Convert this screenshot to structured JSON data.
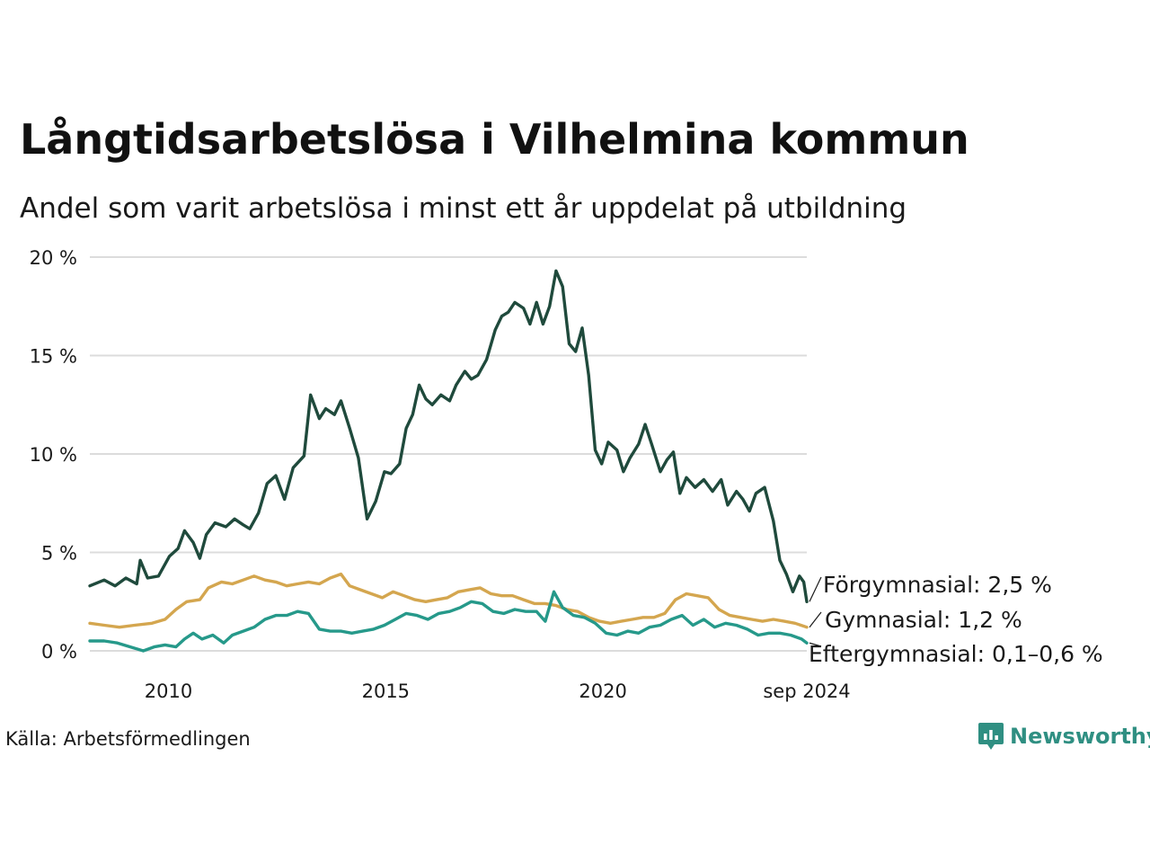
{
  "header": {
    "title": "Långtidsarbetslösa i Vilhelmina kommun",
    "subtitle": "Andel som varit arbetslösa i minst ett år uppdelat på utbildning"
  },
  "footer": {
    "source": "Källa: Arbetsförmedlingen",
    "brand": "Newsworthy",
    "brand_icon": "bar-chart-speech-bubble-icon",
    "brand_color": "#2f8f82"
  },
  "chart_data": {
    "type": "line",
    "ylim": [
      0,
      20
    ],
    "y_ticks": [
      0,
      5,
      10,
      15,
      20
    ],
    "y_tick_labels": [
      "0 %",
      "5 %",
      "10 %",
      "15 %",
      "20 %"
    ],
    "x_range": [
      2008.17,
      2024.67
    ],
    "x_ticks": [
      2010,
      2015,
      2020,
      2024.67
    ],
    "x_tick_labels": [
      "2010",
      "2015",
      "2020",
      "sep 2024"
    ],
    "grid": true,
    "series": [
      {
        "key": "forgymnasial",
        "end_label": "Förgymnasial: 2,5 %",
        "color": "#1f4a3c",
        "points": [
          [
            2008.17,
            3.3
          ],
          [
            2008.5,
            3.6
          ],
          [
            2008.75,
            3.3
          ],
          [
            2009.0,
            3.7
          ],
          [
            2009.25,
            3.4
          ],
          [
            2009.33,
            4.6
          ],
          [
            2009.5,
            3.7
          ],
          [
            2009.75,
            3.8
          ],
          [
            2010.0,
            4.8
          ],
          [
            2010.2,
            5.2
          ],
          [
            2010.35,
            6.1
          ],
          [
            2010.55,
            5.5
          ],
          [
            2010.7,
            4.7
          ],
          [
            2010.85,
            5.9
          ],
          [
            2011.05,
            6.5
          ],
          [
            2011.3,
            6.3
          ],
          [
            2011.5,
            6.7
          ],
          [
            2011.7,
            6.4
          ],
          [
            2011.85,
            6.2
          ],
          [
            2012.05,
            7.0
          ],
          [
            2012.25,
            8.5
          ],
          [
            2012.45,
            8.9
          ],
          [
            2012.65,
            7.7
          ],
          [
            2012.85,
            9.3
          ],
          [
            2013.1,
            9.9
          ],
          [
            2013.25,
            13.0
          ],
          [
            2013.45,
            11.8
          ],
          [
            2013.6,
            12.3
          ],
          [
            2013.8,
            12.0
          ],
          [
            2013.95,
            12.7
          ],
          [
            2014.15,
            11.3
          ],
          [
            2014.35,
            9.8
          ],
          [
            2014.55,
            6.7
          ],
          [
            2014.75,
            7.6
          ],
          [
            2014.95,
            9.1
          ],
          [
            2015.1,
            9.0
          ],
          [
            2015.3,
            9.5
          ],
          [
            2015.45,
            11.3
          ],
          [
            2015.6,
            12.0
          ],
          [
            2015.75,
            13.5
          ],
          [
            2015.9,
            12.8
          ],
          [
            2016.05,
            12.5
          ],
          [
            2016.25,
            13.0
          ],
          [
            2016.45,
            12.7
          ],
          [
            2016.6,
            13.5
          ],
          [
            2016.8,
            14.2
          ],
          [
            2016.95,
            13.8
          ],
          [
            2017.1,
            14.0
          ],
          [
            2017.3,
            14.8
          ],
          [
            2017.5,
            16.3
          ],
          [
            2017.65,
            17.0
          ],
          [
            2017.8,
            17.2
          ],
          [
            2017.95,
            17.7
          ],
          [
            2018.15,
            17.4
          ],
          [
            2018.3,
            16.6
          ],
          [
            2018.45,
            17.7
          ],
          [
            2018.6,
            16.6
          ],
          [
            2018.75,
            17.5
          ],
          [
            2018.9,
            19.3
          ],
          [
            2019.05,
            18.5
          ],
          [
            2019.2,
            15.6
          ],
          [
            2019.35,
            15.2
          ],
          [
            2019.5,
            16.4
          ],
          [
            2019.65,
            14.0
          ],
          [
            2019.8,
            10.2
          ],
          [
            2019.95,
            9.5
          ],
          [
            2020.1,
            10.6
          ],
          [
            2020.3,
            10.2
          ],
          [
            2020.45,
            9.1
          ],
          [
            2020.6,
            9.8
          ],
          [
            2020.8,
            10.5
          ],
          [
            2020.95,
            11.5
          ],
          [
            2021.1,
            10.5
          ],
          [
            2021.3,
            9.1
          ],
          [
            2021.45,
            9.7
          ],
          [
            2021.6,
            10.1
          ],
          [
            2021.75,
            8.0
          ],
          [
            2021.9,
            8.8
          ],
          [
            2022.1,
            8.3
          ],
          [
            2022.3,
            8.7
          ],
          [
            2022.5,
            8.1
          ],
          [
            2022.7,
            8.7
          ],
          [
            2022.85,
            7.4
          ],
          [
            2023.05,
            8.1
          ],
          [
            2023.2,
            7.7
          ],
          [
            2023.35,
            7.1
          ],
          [
            2023.5,
            8.0
          ],
          [
            2023.7,
            8.3
          ],
          [
            2023.9,
            6.6
          ],
          [
            2024.05,
            4.6
          ],
          [
            2024.2,
            3.9
          ],
          [
            2024.35,
            3.0
          ],
          [
            2024.5,
            3.8
          ],
          [
            2024.6,
            3.5
          ],
          [
            2024.67,
            2.5
          ]
        ]
      },
      {
        "key": "gymnasial",
        "end_label": "Gymnasial: 1,2 %",
        "color": "#d4a64f",
        "points": [
          [
            2008.17,
            1.4
          ],
          [
            2008.5,
            1.3
          ],
          [
            2008.85,
            1.2
          ],
          [
            2009.2,
            1.3
          ],
          [
            2009.6,
            1.4
          ],
          [
            2009.9,
            1.6
          ],
          [
            2010.15,
            2.1
          ],
          [
            2010.4,
            2.5
          ],
          [
            2010.7,
            2.6
          ],
          [
            2010.9,
            3.2
          ],
          [
            2011.2,
            3.5
          ],
          [
            2011.45,
            3.4
          ],
          [
            2011.7,
            3.6
          ],
          [
            2011.95,
            3.8
          ],
          [
            2012.2,
            3.6
          ],
          [
            2012.45,
            3.5
          ],
          [
            2012.7,
            3.3
          ],
          [
            2012.95,
            3.4
          ],
          [
            2013.2,
            3.5
          ],
          [
            2013.45,
            3.4
          ],
          [
            2013.7,
            3.7
          ],
          [
            2013.95,
            3.9
          ],
          [
            2014.15,
            3.3
          ],
          [
            2014.4,
            3.1
          ],
          [
            2014.65,
            2.9
          ],
          [
            2014.9,
            2.7
          ],
          [
            2015.15,
            3.0
          ],
          [
            2015.4,
            2.8
          ],
          [
            2015.65,
            2.6
          ],
          [
            2015.9,
            2.5
          ],
          [
            2016.15,
            2.6
          ],
          [
            2016.4,
            2.7
          ],
          [
            2016.65,
            3.0
          ],
          [
            2016.9,
            3.1
          ],
          [
            2017.15,
            3.2
          ],
          [
            2017.4,
            2.9
          ],
          [
            2017.65,
            2.8
          ],
          [
            2017.9,
            2.8
          ],
          [
            2018.15,
            2.6
          ],
          [
            2018.4,
            2.4
          ],
          [
            2018.65,
            2.4
          ],
          [
            2018.9,
            2.3
          ],
          [
            2019.15,
            2.1
          ],
          [
            2019.4,
            2.0
          ],
          [
            2019.65,
            1.7
          ],
          [
            2019.9,
            1.5
          ],
          [
            2020.15,
            1.4
          ],
          [
            2020.4,
            1.5
          ],
          [
            2020.65,
            1.6
          ],
          [
            2020.9,
            1.7
          ],
          [
            2021.15,
            1.7
          ],
          [
            2021.4,
            1.9
          ],
          [
            2021.65,
            2.6
          ],
          [
            2021.9,
            2.9
          ],
          [
            2022.15,
            2.8
          ],
          [
            2022.4,
            2.7
          ],
          [
            2022.65,
            2.1
          ],
          [
            2022.9,
            1.8
          ],
          [
            2023.15,
            1.7
          ],
          [
            2023.4,
            1.6
          ],
          [
            2023.65,
            1.5
          ],
          [
            2023.9,
            1.6
          ],
          [
            2024.15,
            1.5
          ],
          [
            2024.4,
            1.4
          ],
          [
            2024.67,
            1.2
          ]
        ]
      },
      {
        "key": "eftergymnasial",
        "end_label": "Eftergymnasial: 0,1–0,6 %",
        "color": "#26998a",
        "points": [
          [
            2008.17,
            0.5
          ],
          [
            2008.5,
            0.5
          ],
          [
            2008.8,
            0.4
          ],
          [
            2009.1,
            0.2
          ],
          [
            2009.4,
            0.0
          ],
          [
            2009.65,
            0.2
          ],
          [
            2009.9,
            0.3
          ],
          [
            2010.15,
            0.2
          ],
          [
            2010.35,
            0.6
          ],
          [
            2010.55,
            0.9
          ],
          [
            2010.75,
            0.6
          ],
          [
            2011.0,
            0.8
          ],
          [
            2011.25,
            0.4
          ],
          [
            2011.45,
            0.8
          ],
          [
            2011.7,
            1.0
          ],
          [
            2011.95,
            1.2
          ],
          [
            2012.2,
            1.6
          ],
          [
            2012.45,
            1.8
          ],
          [
            2012.7,
            1.8
          ],
          [
            2012.95,
            2.0
          ],
          [
            2013.2,
            1.9
          ],
          [
            2013.45,
            1.1
          ],
          [
            2013.7,
            1.0
          ],
          [
            2013.95,
            1.0
          ],
          [
            2014.2,
            0.9
          ],
          [
            2014.45,
            1.0
          ],
          [
            2014.7,
            1.1
          ],
          [
            2014.95,
            1.3
          ],
          [
            2015.2,
            1.6
          ],
          [
            2015.45,
            1.9
          ],
          [
            2015.7,
            1.8
          ],
          [
            2015.95,
            1.6
          ],
          [
            2016.2,
            1.9
          ],
          [
            2016.45,
            2.0
          ],
          [
            2016.7,
            2.2
          ],
          [
            2016.95,
            2.5
          ],
          [
            2017.2,
            2.4
          ],
          [
            2017.45,
            2.0
          ],
          [
            2017.7,
            1.9
          ],
          [
            2017.95,
            2.1
          ],
          [
            2018.2,
            2.0
          ],
          [
            2018.45,
            2.0
          ],
          [
            2018.65,
            1.5
          ],
          [
            2018.85,
            3.0
          ],
          [
            2019.05,
            2.2
          ],
          [
            2019.3,
            1.8
          ],
          [
            2019.55,
            1.7
          ],
          [
            2019.8,
            1.4
          ],
          [
            2020.05,
            0.9
          ],
          [
            2020.3,
            0.8
          ],
          [
            2020.55,
            1.0
          ],
          [
            2020.8,
            0.9
          ],
          [
            2021.05,
            1.2
          ],
          [
            2021.3,
            1.3
          ],
          [
            2021.55,
            1.6
          ],
          [
            2021.8,
            1.8
          ],
          [
            2022.05,
            1.3
          ],
          [
            2022.3,
            1.6
          ],
          [
            2022.55,
            1.2
          ],
          [
            2022.8,
            1.4
          ],
          [
            2023.05,
            1.3
          ],
          [
            2023.3,
            1.1
          ],
          [
            2023.55,
            0.8
          ],
          [
            2023.8,
            0.9
          ],
          [
            2024.05,
            0.9
          ],
          [
            2024.3,
            0.8
          ],
          [
            2024.55,
            0.6
          ],
          [
            2024.67,
            0.4
          ]
        ]
      }
    ]
  }
}
